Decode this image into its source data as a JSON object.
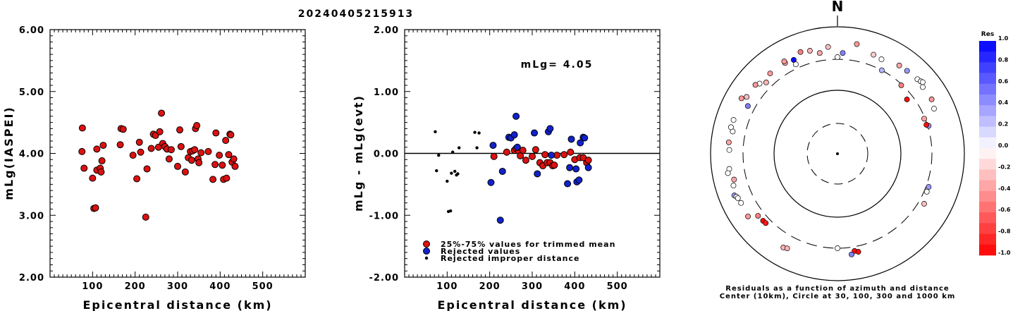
{
  "title": "20240405215913",
  "chart_data": [
    {
      "type": "scatter",
      "ylabel": "mLg(IASPEI)",
      "xlabel": "Epicentral distance (km)",
      "xlim": [
        0,
        600
      ],
      "ylim": [
        2.0,
        6.0
      ],
      "xticks": [
        "100",
        "200",
        "300",
        "400",
        "500"
      ],
      "yticks": [
        "2.00",
        "3.00",
        "4.00",
        "5.00",
        "6.00"
      ],
      "marker_color": "#dd1111",
      "points": [
        [
          75,
          4.03
        ],
        [
          76,
          4.41
        ],
        [
          80,
          3.76
        ],
        [
          100,
          3.6
        ],
        [
          103,
          3.11
        ],
        [
          107,
          3.12
        ],
        [
          110,
          4.07
        ],
        [
          110,
          3.73
        ],
        [
          118,
          3.76
        ],
        [
          120,
          3.7
        ],
        [
          122,
          3.88
        ],
        [
          125,
          4.13
        ],
        [
          165,
          4.14
        ],
        [
          167,
          4.4
        ],
        [
          172,
          4.39
        ],
        [
          195,
          3.97
        ],
        [
          204,
          3.59
        ],
        [
          210,
          4.18
        ],
        [
          213,
          4.02
        ],
        [
          225,
          2.97
        ],
        [
          228,
          3.75
        ],
        [
          238,
          4.08
        ],
        [
          243,
          4.31
        ],
        [
          248,
          4.29
        ],
        [
          255,
          4.1
        ],
        [
          258,
          4.35
        ],
        [
          262,
          4.65
        ],
        [
          265,
          4.16
        ],
        [
          270,
          4.11
        ],
        [
          275,
          4.07
        ],
        [
          280,
          3.91
        ],
        [
          285,
          4.06
        ],
        [
          300,
          3.79
        ],
        [
          305,
          4.38
        ],
        [
          308,
          4.11
        ],
        [
          318,
          3.7
        ],
        [
          325,
          3.93
        ],
        [
          330,
          4.03
        ],
        [
          333,
          3.89
        ],
        [
          335,
          4.04
        ],
        [
          340,
          4.06
        ],
        [
          342,
          4.4
        ],
        [
          345,
          4.45
        ],
        [
          348,
          3.91
        ],
        [
          350,
          3.85
        ],
        [
          355,
          4.01
        ],
        [
          372,
          4.03
        ],
        [
          383,
          3.58
        ],
        [
          388,
          3.82
        ],
        [
          390,
          4.33
        ],
        [
          398,
          3.97
        ],
        [
          405,
          3.81
        ],
        [
          408,
          3.58
        ],
        [
          413,
          4.21
        ],
        [
          415,
          3.6
        ],
        [
          420,
          3.98
        ],
        [
          423,
          4.31
        ],
        [
          425,
          4.3
        ],
        [
          428,
          3.86
        ],
        [
          432,
          3.91
        ],
        [
          435,
          3.79
        ]
      ]
    },
    {
      "type": "scatter",
      "ylabel": "mLg - mLg(evt)",
      "xlabel": "Epicentral distance (km)",
      "xlim": [
        0,
        600
      ],
      "ylim": [
        -2.0,
        2.0
      ],
      "xticks": [
        "100",
        "200",
        "300",
        "400",
        "500"
      ],
      "yticks": [
        "-2.00",
        "-1.00",
        "0.00",
        "1.00",
        "2.00"
      ],
      "annotation": "mLg= 4.05",
      "legend": [
        "25%-75% values for trimmed mean",
        "Rejected values",
        "Rejected improper distance"
      ],
      "series": [
        {
          "name": "25%-75% values for trimmed mean",
          "color": "#dd1111",
          "points": [
            [
              210,
              -0.05
            ],
            [
              240,
              0.02
            ],
            [
              258,
              0.05
            ],
            [
              262,
              0.08
            ],
            [
              268,
              0.04
            ],
            [
              272,
              -0.04
            ],
            [
              278,
              0.05
            ],
            [
              285,
              -0.11
            ],
            [
              300,
              -0.05
            ],
            [
              308,
              0.06
            ],
            [
              318,
              -0.15
            ],
            [
              325,
              -0.2
            ],
            [
              330,
              -0.02
            ],
            [
              335,
              -0.15
            ],
            [
              342,
              -0.15
            ],
            [
              348,
              -0.2
            ],
            [
              352,
              -0.19
            ],
            [
              358,
              -0.03
            ],
            [
              375,
              -0.02
            ],
            [
              390,
              0.02
            ],
            [
              400,
              -0.1
            ],
            [
              412,
              -0.07
            ],
            [
              420,
              -0.07
            ],
            [
              428,
              -0.15
            ],
            [
              432,
              -0.11
            ]
          ]
        },
        {
          "name": "Rejected values",
          "color": "#1122cc",
          "points": [
            [
              203,
              -0.47
            ],
            [
              208,
              0.13
            ],
            [
              225,
              -1.08
            ],
            [
              230,
              -0.29
            ],
            [
              245,
              0.26
            ],
            [
              250,
              0.25
            ],
            [
              258,
              0.3
            ],
            [
              262,
              0.6
            ],
            [
              265,
              0.1
            ],
            [
              305,
              0.33
            ],
            [
              312,
              -0.33
            ],
            [
              338,
              0.35
            ],
            [
              342,
              0.4
            ],
            [
              345,
              -0.03
            ],
            [
              383,
              -0.49
            ],
            [
              388,
              -0.23
            ],
            [
              392,
              0.23
            ],
            [
              403,
              -0.25
            ],
            [
              405,
              -0.46
            ],
            [
              410,
              -0.43
            ],
            [
              413,
              0.17
            ],
            [
              420,
              0.26
            ],
            [
              423,
              0.25
            ],
            [
              432,
              -0.23
            ]
          ]
        },
        {
          "name": "Rejected improper distance",
          "color": "#000000",
          "points": [
            [
              72,
              0.35
            ],
            [
              75,
              -0.28
            ],
            [
              80,
              -0.03
            ],
            [
              100,
              -0.45
            ],
            [
              103,
              -0.94
            ],
            [
              108,
              -0.93
            ],
            [
              110,
              -0.32
            ],
            [
              113,
              0.02
            ],
            [
              118,
              -0.29
            ],
            [
              122,
              -0.35
            ],
            [
              125,
              -0.33
            ],
            [
              128,
              0.09
            ],
            [
              165,
              0.34
            ],
            [
              170,
              0.09
            ],
            [
              175,
              0.33
            ]
          ]
        }
      ]
    },
    {
      "type": "scatter",
      "subtype": "polar-residuals",
      "north_label": "N",
      "caption_line1": "Residuals as a function of azimuth and distance",
      "caption_line2": "Center (10km), Circle at 30, 100, 300 and 1000 km",
      "colorbar_title": "Res",
      "colorbar_ticks": [
        "1.0",
        "0.8",
        "0.6",
        "0.4",
        "0.2",
        "0.0",
        "-0.2",
        "-0.4",
        "-0.6",
        "-0.8",
        "-1.0"
      ],
      "rings_km": [
        30,
        100,
        300,
        1000
      ],
      "points": [
        {
          "az": 350,
          "dist": 400,
          "res": -0.35
        },
        {
          "az": 355,
          "dist": 480,
          "res": -0.25
        },
        {
          "az": 3,
          "dist": 380,
          "res": 0.5
        },
        {
          "az": 10,
          "dist": 560,
          "res": -0.4
        },
        {
          "az": 20,
          "dist": 450,
          "res": -0.2
        },
        {
          "az": 25,
          "dist": 430,
          "res": 0.0
        },
        {
          "az": 28,
          "dist": 300,
          "res": 0.3
        },
        {
          "az": 35,
          "dist": 490,
          "res": -0.35
        },
        {
          "az": 40,
          "dist": 500,
          "res": 0.4
        },
        {
          "az": 43,
          "dist": 290,
          "res": -0.5
        },
        {
          "az": 47,
          "dist": 520,
          "res": 0.0
        },
        {
          "az": 49,
          "dist": 540,
          "res": 0.0
        },
        {
          "az": 50,
          "dist": 560,
          "res": 0.0
        },
        {
          "az": 52,
          "dist": 240,
          "res": -0.95
        },
        {
          "az": 60,
          "dist": 510,
          "res": -0.4
        },
        {
          "az": 65,
          "dist": 470,
          "res": 0.0
        },
        {
          "az": 68,
          "dist": 290,
          "res": -0.35
        },
        {
          "az": 73,
          "dist": 310,
          "res": 0.4
        },
        {
          "az": 72,
          "dist": 290,
          "res": -0.95
        },
        {
          "az": 335,
          "dist": 420,
          "res": 0.95
        },
        {
          "az": 330,
          "dist": 440,
          "res": -0.3
        },
        {
          "az": 320,
          "dist": 440,
          "res": -0.4
        },
        {
          "az": 315,
          "dist": 380,
          "res": -0.3
        },
        {
          "az": 312,
          "dist": 440,
          "res": 0.0
        },
        {
          "az": 310,
          "dist": 480,
          "res": -0.4
        },
        {
          "az": 302,
          "dist": 480,
          "res": -0.25
        },
        {
          "az": 298,
          "dist": 390,
          "res": 0.5
        },
        {
          "az": 288,
          "dist": 520,
          "res": 0.0
        },
        {
          "az": 282,
          "dist": 480,
          "res": 0.0
        },
        {
          "az": 276,
          "dist": 520,
          "res": -0.35
        },
        {
          "az": 272,
          "dist": 500,
          "res": 0.0
        },
        {
          "az": 262,
          "dist": 520,
          "res": 0.0
        },
        {
          "az": 260,
          "dist": 560,
          "res": 0.0
        },
        {
          "az": 256,
          "dist": 470,
          "res": -0.35
        },
        {
          "az": 253,
          "dist": 510,
          "res": 0.0
        },
        {
          "az": 248,
          "dist": 560,
          "res": 0.4
        },
        {
          "az": 247,
          "dist": 530,
          "res": 0.0
        },
        {
          "az": 246,
          "dist": 515,
          "res": 0.0
        },
        {
          "az": 243,
          "dist": 500,
          "res": 0.0
        },
        {
          "az": 235,
          "dist": 520,
          "res": -0.4
        },
        {
          "az": 232,
          "dist": 380,
          "res": -0.5
        },
        {
          "az": 228,
          "dist": 370,
          "res": -0.95
        },
        {
          "az": 226,
          "dist": 365,
          "res": -0.9
        },
        {
          "az": 210,
          "dist": 500,
          "res": -0.3
        },
        {
          "az": 208,
          "dist": 480,
          "res": -0.3
        },
        {
          "az": 180,
          "dist": 300,
          "res": 0.0
        },
        {
          "az": 170,
          "dist": 350,
          "res": -0.95
        },
        {
          "az": 168,
          "dist": 372,
          "res": -0.95
        },
        {
          "az": 172,
          "dist": 392,
          "res": 0.5
        },
        {
          "az": 300,
          "dist": 550,
          "res": -0.4
        },
        {
          "az": 335,
          "dist": 350,
          "res": 0.0
        },
        {
          "az": 330,
          "dist": 470,
          "res": -0.4
        },
        {
          "az": 345,
          "dist": 470,
          "res": -0.3
        },
        {
          "az": 340,
          "dist": 500,
          "res": -0.5
        },
        {
          "az": 0,
          "dist": 325,
          "res": 0.0
        },
        {
          "az": 52,
          "dist": 500,
          "res": 0.0
        },
        {
          "az": 110,
          "dist": 330,
          "res": 0.4
        },
        {
          "az": 120,
          "dist": 370,
          "res": -0.25
        },
        {
          "az": 113,
          "dist": 330,
          "res": 0.0
        },
        {
          "az": 284,
          "dist": 530,
          "res": 0.0
        }
      ]
    }
  ]
}
